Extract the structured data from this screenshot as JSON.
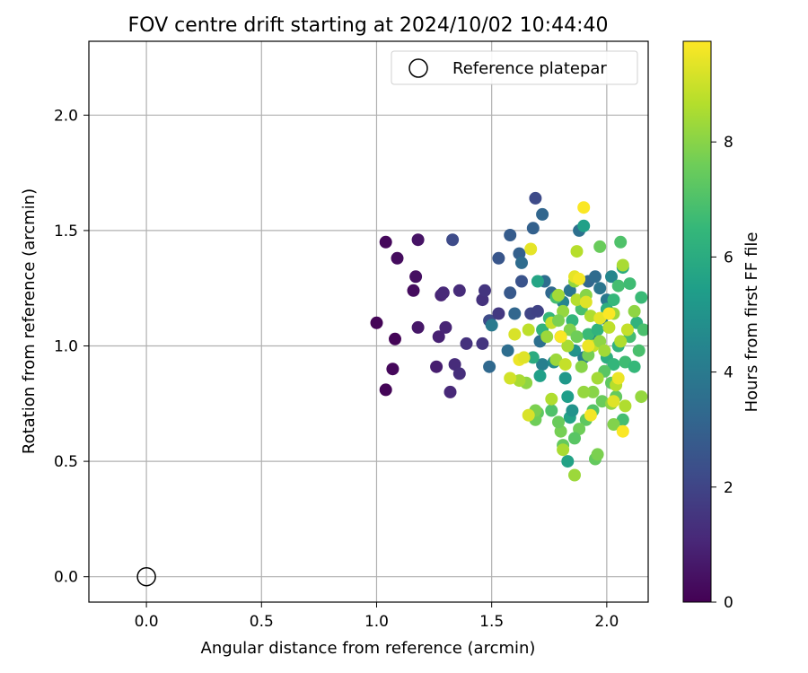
{
  "chart_data": {
    "type": "scatter",
    "title": "FOV centre drift starting at 2024/10/02 10:44:40",
    "xlabel": "Angular distance from reference (arcmin)",
    "ylabel": "Rotation from reference (arcmin)",
    "xlim": [
      -0.25,
      2.18
    ],
    "ylim": [
      -0.11,
      2.32
    ],
    "xticks": [
      "0.0",
      "0.5",
      "1.0",
      "1.5",
      "2.0"
    ],
    "yticks": [
      "0.0",
      "0.5",
      "1.0",
      "1.5",
      "2.0"
    ],
    "xtick_values": [
      0,
      0.5,
      1.0,
      1.5,
      2.0
    ],
    "ytick_values": [
      0,
      0.5,
      1.0,
      1.5,
      2.0
    ],
    "grid": true,
    "legend": {
      "position": "top-right",
      "entries": [
        "Reference platepar"
      ]
    },
    "colorbar": {
      "label": "Hours from first FF file",
      "colormap": "viridis",
      "range": [
        0,
        9.75
      ],
      "ticks": [
        "0",
        "2",
        "4",
        "6",
        "8"
      ],
      "tick_values": [
        0,
        2,
        4,
        6,
        8
      ]
    },
    "reference_point": {
      "x": 0.0,
      "y": 0.0
    },
    "points": [
      [
        1.0,
        1.1,
        0.1
      ],
      [
        1.04,
        1.45,
        0.2
      ],
      [
        1.04,
        0.81,
        0.1
      ],
      [
        1.07,
        0.9,
        0.2
      ],
      [
        1.08,
        1.03,
        0.1
      ],
      [
        1.09,
        1.38,
        0.3
      ],
      [
        1.16,
        1.24,
        0.3
      ],
      [
        1.17,
        1.3,
        0.4
      ],
      [
        1.18,
        1.46,
        0.5
      ],
      [
        1.18,
        1.08,
        0.6
      ],
      [
        1.26,
        0.91,
        0.8
      ],
      [
        1.27,
        1.04,
        0.9
      ],
      [
        1.28,
        1.22,
        1.0
      ],
      [
        1.29,
        1.23,
        1.1
      ],
      [
        1.3,
        1.08,
        1.0
      ],
      [
        1.32,
        0.8,
        1.1
      ],
      [
        1.34,
        0.92,
        1.2
      ],
      [
        1.36,
        1.24,
        1.2
      ],
      [
        1.36,
        0.88,
        1.3
      ],
      [
        1.39,
        1.01,
        1.4
      ],
      [
        1.46,
        1.2,
        1.4
      ],
      [
        1.46,
        1.01,
        1.5
      ],
      [
        1.47,
        1.24,
        1.5
      ],
      [
        1.33,
        1.46,
        2.2
      ],
      [
        1.49,
        1.11,
        2.2
      ],
      [
        1.53,
        1.38,
        2.6
      ],
      [
        1.58,
        1.48,
        2.8
      ],
      [
        1.58,
        1.23,
        2.7
      ],
      [
        1.6,
        1.14,
        3.2
      ],
      [
        1.62,
        1.4,
        3.0
      ],
      [
        1.63,
        1.36,
        3.4
      ],
      [
        1.63,
        1.28,
        2.5
      ],
      [
        1.67,
        1.14,
        2.0
      ],
      [
        1.68,
        1.51,
        3.0
      ],
      [
        1.69,
        1.64,
        2.2
      ],
      [
        1.72,
        1.57,
        3.2
      ],
      [
        1.73,
        1.28,
        3.5
      ],
      [
        1.76,
        1.23,
        3.3
      ],
      [
        1.7,
        1.15,
        1.9
      ],
      [
        1.53,
        1.14,
        1.6
      ],
      [
        1.49,
        0.91,
        3.3
      ],
      [
        1.57,
        0.98,
        3.5
      ],
      [
        1.5,
        1.09,
        4.0
      ],
      [
        1.71,
        1.02,
        3.6
      ],
      [
        1.72,
        0.92,
        4.2
      ],
      [
        1.77,
        0.93,
        4.7
      ],
      [
        1.8,
        1.04,
        4.3
      ],
      [
        1.81,
        1.19,
        4.4
      ],
      [
        1.84,
        1.24,
        3.8
      ],
      [
        1.88,
        1.5,
        3.6
      ],
      [
        1.9,
        1.52,
        5.5
      ],
      [
        1.92,
        1.28,
        3.2
      ],
      [
        1.95,
        1.3,
        3.4
      ],
      [
        1.97,
        1.25,
        3.8
      ],
      [
        2.02,
        1.3,
        4.5
      ],
      [
        2.0,
        1.2,
        3.9
      ],
      [
        1.98,
        1.12,
        4.2
      ],
      [
        1.94,
        1.04,
        4.6
      ],
      [
        1.9,
        0.95,
        4.1
      ],
      [
        1.86,
        0.98,
        5.0
      ],
      [
        1.82,
        0.86,
        5.2
      ],
      [
        1.83,
        0.78,
        5.4
      ],
      [
        1.84,
        0.69,
        5.6
      ],
      [
        1.85,
        0.72,
        5.0
      ],
      [
        1.83,
        0.5,
        5.6
      ],
      [
        1.71,
        0.87,
        5.5
      ],
      [
        1.68,
        0.95,
        6.0
      ],
      [
        1.7,
        1.28,
        5.7
      ],
      [
        1.72,
        1.07,
        6.3
      ],
      [
        1.75,
        1.12,
        6.5
      ],
      [
        1.78,
        1.21,
        6.8
      ],
      [
        1.85,
        1.11,
        6.4
      ],
      [
        1.89,
        1.16,
        6.9
      ],
      [
        1.92,
        1.05,
        6.6
      ],
      [
        1.96,
        1.07,
        6.3
      ],
      [
        2.0,
        1.16,
        6.1
      ],
      [
        2.03,
        1.2,
        6.5
      ],
      [
        2.05,
        1.26,
        6.8
      ],
      [
        2.07,
        1.34,
        6.0
      ],
      [
        2.1,
        1.27,
        6.7
      ],
      [
        2.13,
        1.1,
        6.3
      ],
      [
        2.15,
        1.21,
        6.6
      ],
      [
        2.16,
        1.07,
        6.9
      ],
      [
        2.0,
        0.95,
        6.1
      ],
      [
        2.03,
        0.92,
        6.4
      ],
      [
        2.05,
        1.0,
        6.3
      ],
      [
        2.08,
        0.93,
        6.7
      ],
      [
        2.1,
        1.04,
        6.8
      ],
      [
        2.12,
        0.91,
        6.5
      ],
      [
        2.14,
        0.98,
        6.9
      ],
      [
        1.99,
        0.89,
        7.2
      ],
      [
        2.02,
        0.84,
        7.3
      ],
      [
        2.04,
        0.78,
        7.4
      ],
      [
        1.98,
        0.76,
        7.5
      ],
      [
        1.94,
        0.72,
        7.1
      ],
      [
        1.91,
        0.68,
        7.3
      ],
      [
        1.88,
        0.64,
        7.6
      ],
      [
        1.86,
        0.6,
        7.2
      ],
      [
        1.81,
        0.57,
        7.4
      ],
      [
        1.8,
        0.63,
        7.7
      ],
      [
        1.79,
        0.67,
        7.5
      ],
      [
        1.76,
        0.72,
        7.0
      ],
      [
        1.7,
        0.71,
        7.3
      ],
      [
        1.69,
        0.68,
        7.6
      ],
      [
        1.69,
        0.72,
        7.8
      ],
      [
        2.06,
        1.45,
        7.0
      ],
      [
        1.97,
        1.43,
        7.5
      ],
      [
        2.07,
        0.68,
        6.8
      ],
      [
        2.03,
        0.66,
        7.9
      ],
      [
        1.95,
        0.51,
        7.4
      ],
      [
        1.96,
        0.53,
        7.8
      ],
      [
        1.86,
        0.44,
        8.3
      ],
      [
        1.81,
        0.55,
        8.5
      ],
      [
        1.94,
        0.8,
        8.0
      ],
      [
        1.9,
        0.8,
        8.2
      ],
      [
        1.96,
        0.86,
        8.4
      ],
      [
        2.02,
        0.75,
        8.1
      ],
      [
        2.08,
        0.74,
        8.6
      ],
      [
        2.04,
        0.83,
        8.7
      ],
      [
        2.15,
        0.78,
        8.2
      ],
      [
        1.65,
        0.84,
        8.1
      ],
      [
        1.62,
        0.85,
        8.5
      ],
      [
        1.66,
        1.07,
        8.8
      ],
      [
        1.74,
        1.04,
        8.3
      ],
      [
        1.76,
        1.1,
        8.9
      ],
      [
        1.79,
        1.22,
        8.4
      ],
      [
        1.81,
        1.15,
        8.2
      ],
      [
        1.87,
        1.2,
        8.7
      ],
      [
        1.91,
        1.22,
        8.0
      ],
      [
        1.93,
        1.13,
        8.6
      ],
      [
        1.94,
        1.0,
        8.9
      ],
      [
        1.97,
        1.02,
        8.1
      ],
      [
        1.99,
        0.98,
        8.4
      ],
      [
        2.01,
        1.08,
        8.8
      ],
      [
        2.03,
        1.14,
        8.3
      ],
      [
        2.06,
        1.02,
        8.6
      ],
      [
        2.09,
        1.07,
        8.9
      ],
      [
        2.12,
        1.15,
        8.1
      ],
      [
        2.07,
        1.35,
        8.5
      ],
      [
        1.87,
        1.41,
        8.7
      ],
      [
        1.78,
        0.94,
        8.3
      ],
      [
        1.76,
        0.77,
        8.6
      ],
      [
        1.82,
        0.92,
        8.9
      ],
      [
        1.89,
        0.91,
        8.0
      ],
      [
        1.86,
        1.28,
        8.2
      ],
      [
        1.84,
        1.07,
        7.9
      ],
      [
        1.83,
        1.0,
        8.5
      ],
      [
        1.79,
        1.11,
        7.8
      ],
      [
        1.87,
        1.04,
        7.6
      ],
      [
        1.92,
        0.96,
        7.7
      ],
      [
        1.6,
        1.05,
        9.2
      ],
      [
        1.62,
        0.94,
        9.5
      ],
      [
        1.64,
        0.95,
        9.3
      ],
      [
        1.67,
        1.42,
        9.4
      ],
      [
        1.8,
        1.04,
        9.7
      ],
      [
        1.86,
        1.3,
        9.4
      ],
      [
        1.88,
        1.29,
        9.6
      ],
      [
        1.9,
        1.6,
        9.7
      ],
      [
        1.91,
        1.19,
        9.3
      ],
      [
        1.92,
        1.0,
        9.5
      ],
      [
        1.93,
        0.7,
        9.6
      ],
      [
        1.97,
        1.12,
        9.4
      ],
      [
        2.01,
        1.14,
        9.7
      ],
      [
        2.03,
        0.76,
        9.3
      ],
      [
        2.05,
        0.86,
        9.5
      ],
      [
        2.07,
        0.63,
        9.7
      ],
      [
        1.66,
        0.7,
        9.2
      ],
      [
        1.58,
        0.86,
        9.1
      ]
    ]
  }
}
